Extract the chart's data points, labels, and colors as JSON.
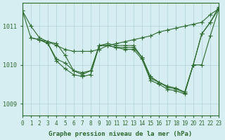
{
  "background_color": "#d6eef2",
  "grid_color": "#b0d4da",
  "line_color": "#2d6a2d",
  "marker_color": "#2d6a2d",
  "title": "Graphe pression niveau de la mer (hPa)",
  "xlabel": "",
  "ylabel": "",
  "xlim": [
    0,
    23
  ],
  "ylim": [
    1008.7,
    1011.6
  ],
  "yticks": [
    1009,
    1010,
    1011
  ],
  "xticks": [
    0,
    1,
    2,
    3,
    4,
    5,
    6,
    7,
    8,
    9,
    10,
    11,
    12,
    13,
    14,
    15,
    16,
    17,
    18,
    19,
    20,
    21,
    22,
    23
  ],
  "series": [
    {
      "x": [
        0,
        1,
        2,
        3,
        4,
        5,
        6,
        7,
        8,
        9,
        10,
        11,
        12,
        13,
        14,
        15,
        16,
        17,
        18,
        19,
        20,
        21,
        22,
        23
      ],
      "y": [
        1011.4,
        1011.0,
        1010.7,
        1010.6,
        1010.5,
        1010.4,
        1010.35,
        1010.35,
        1010.35,
        1010.4,
        1010.5,
        1010.55,
        1010.6,
        1010.65,
        1010.7,
        1010.75,
        1010.85,
        1010.9,
        1010.95,
        1011.0,
        1011.05,
        1011.1,
        1011.3,
        1011.45
      ]
    },
    {
      "x": [
        0,
        1,
        2,
        3,
        4,
        5,
        6,
        7,
        8,
        9,
        10,
        11,
        12,
        13,
        14,
        15,
        16,
        17,
        18,
        19,
        20,
        21,
        22,
        23
      ],
      "y": [
        1011.4,
        1010.7,
        1010.65,
        1010.6,
        1010.55,
        1010.25,
        1009.85,
        1009.8,
        1009.85,
        1010.5,
        1010.55,
        1010.5,
        1010.5,
        1010.5,
        1010.2,
        1009.7,
        1009.55,
        1009.45,
        1009.4,
        1009.3,
        1010.0,
        1010.0,
        1010.75,
        1011.45
      ]
    },
    {
      "x": [
        1,
        2,
        3,
        4,
        5,
        6,
        7,
        8,
        9,
        10,
        11,
        12,
        13,
        14,
        15,
        16,
        17,
        18,
        19,
        20,
        21,
        22,
        23
      ],
      "y": [
        1010.7,
        1010.65,
        1010.55,
        1010.15,
        1010.05,
        1009.85,
        1009.75,
        1009.85,
        1010.5,
        1010.5,
        1010.45,
        1010.45,
        1010.45,
        1010.2,
        1009.65,
        1009.55,
        1009.42,
        1009.38,
        1009.28,
        1010.0,
        1010.8,
        1011.1,
        1011.45
      ]
    },
    {
      "x": [
        2,
        3,
        4,
        5,
        6,
        7,
        8,
        9,
        10,
        11,
        12,
        13,
        14,
        15,
        16,
        17,
        18,
        19,
        20,
        21,
        22,
        23
      ],
      "y": [
        1010.65,
        1010.55,
        1010.1,
        1009.9,
        1009.75,
        1009.7,
        1009.75,
        1010.5,
        1010.5,
        1010.45,
        1010.4,
        1010.4,
        1010.15,
        1009.6,
        1009.5,
        1009.37,
        1009.33,
        1009.25,
        1010.0,
        1010.8,
        1011.1,
        1011.5
      ]
    }
  ]
}
